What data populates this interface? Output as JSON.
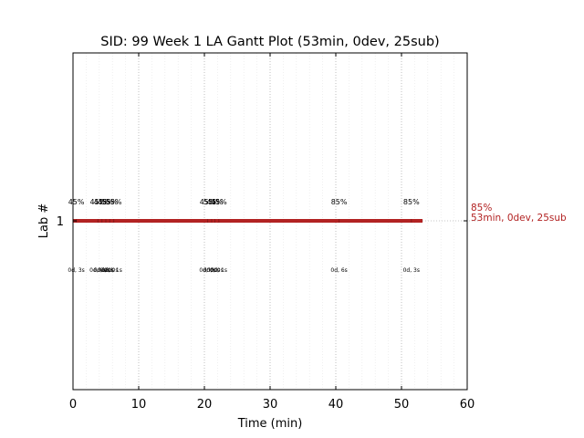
{
  "chart_data": {
    "type": "gantt",
    "title": "SID: 99 Week 1 LA Gantt Plot (53min, 0dev, 25sub)",
    "xlabel": "Time (min)",
    "ylabel": "Lab #",
    "xlim": [
      0,
      60
    ],
    "x_ticks": [
      0,
      10,
      20,
      30,
      40,
      50,
      60
    ],
    "x_minor_step": 2,
    "grid": "vertical-dotted",
    "bar_color": "#b22222",
    "rows": [
      {
        "label": "1",
        "start": 0,
        "end": 53.2,
        "summary_score": "85%",
        "summary_text": "53min, 0dev, 25sub",
        "submissions": [
          {
            "t": 0.5,
            "score": "45%",
            "elapsed": "0d, 3s"
          },
          {
            "t": 3.8,
            "score": "45%",
            "elapsed": "0d, 0s"
          },
          {
            "t": 4.4,
            "score": "45%",
            "elapsed": "0d, 0s"
          },
          {
            "t": 5.0,
            "score": "45%",
            "elapsed": "0d, 0s"
          },
          {
            "t": 5.6,
            "score": "55%",
            "elapsed": "0d, 0s"
          },
          {
            "t": 6.2,
            "score": "55%",
            "elapsed": "0d, 1s"
          },
          {
            "t": 20.5,
            "score": "45%",
            "elapsed": "0d, 0s"
          },
          {
            "t": 21.1,
            "score": "55%",
            "elapsed": "0d, 0s"
          },
          {
            "t": 21.6,
            "score": "45%",
            "elapsed": "0d, 0s"
          },
          {
            "t": 22.2,
            "score": "45%",
            "elapsed": "0d, 1s"
          },
          {
            "t": 40.5,
            "score": "85%",
            "elapsed": "0d, 6s"
          },
          {
            "t": 51.5,
            "score": "85%",
            "elapsed": "0d, 3s"
          }
        ]
      }
    ]
  }
}
